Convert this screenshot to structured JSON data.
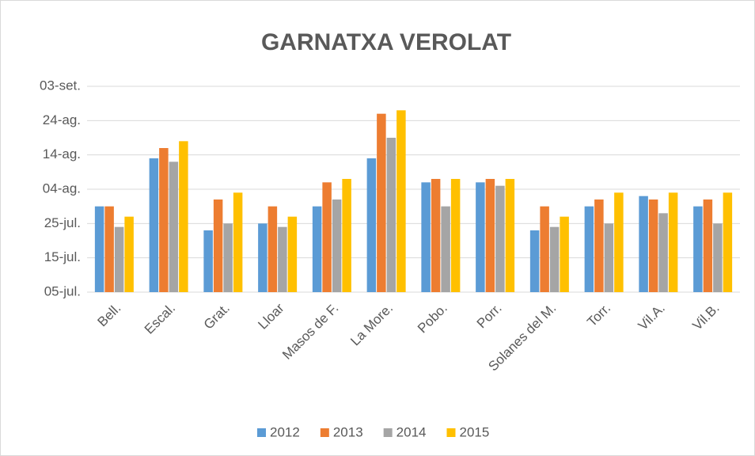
{
  "chart_data": {
    "type": "bar",
    "title": "GARNATXA VEROLAT",
    "categories": [
      "Bell.",
      "Escal.",
      "Grat.",
      "Lloar",
      "Masos de F.",
      "La More.",
      "Pobo.",
      "Porr.",
      "Solanes del M.",
      "Torr.",
      "Vil.A.",
      "Vil.B."
    ],
    "series": [
      {
        "name": "2012",
        "color": "#5b9bd5",
        "values": [
          211,
          225,
          204,
          206,
          211,
          225,
          218,
          218,
          204,
          211,
          214,
          211
        ]
      },
      {
        "name": "2013",
        "color": "#ed7d31",
        "values": [
          211,
          228,
          213,
          211,
          218,
          238,
          219,
          219,
          211,
          213,
          213,
          213
        ]
      },
      {
        "name": "2014",
        "color": "#a5a5a5",
        "values": [
          205,
          224,
          206,
          205,
          213,
          231,
          211,
          217,
          205,
          206,
          209,
          206
        ]
      },
      {
        "name": "2015",
        "color": "#ffc000",
        "values": [
          208,
          230,
          215,
          208,
          219,
          239,
          219,
          219,
          208,
          215,
          215,
          215
        ]
      }
    ],
    "ylim": [
      186,
      246
    ],
    "yticks": [
      {
        "value": 186,
        "label": "05-jul."
      },
      {
        "value": 196,
        "label": "15-jul."
      },
      {
        "value": 206,
        "label": "25-jul."
      },
      {
        "value": 216,
        "label": "04-ag."
      },
      {
        "value": 226,
        "label": "14-ag."
      },
      {
        "value": 236,
        "label": "24-ag."
      },
      {
        "value": 246,
        "label": "03-set."
      }
    ],
    "grid": true,
    "legend": "bottom"
  }
}
